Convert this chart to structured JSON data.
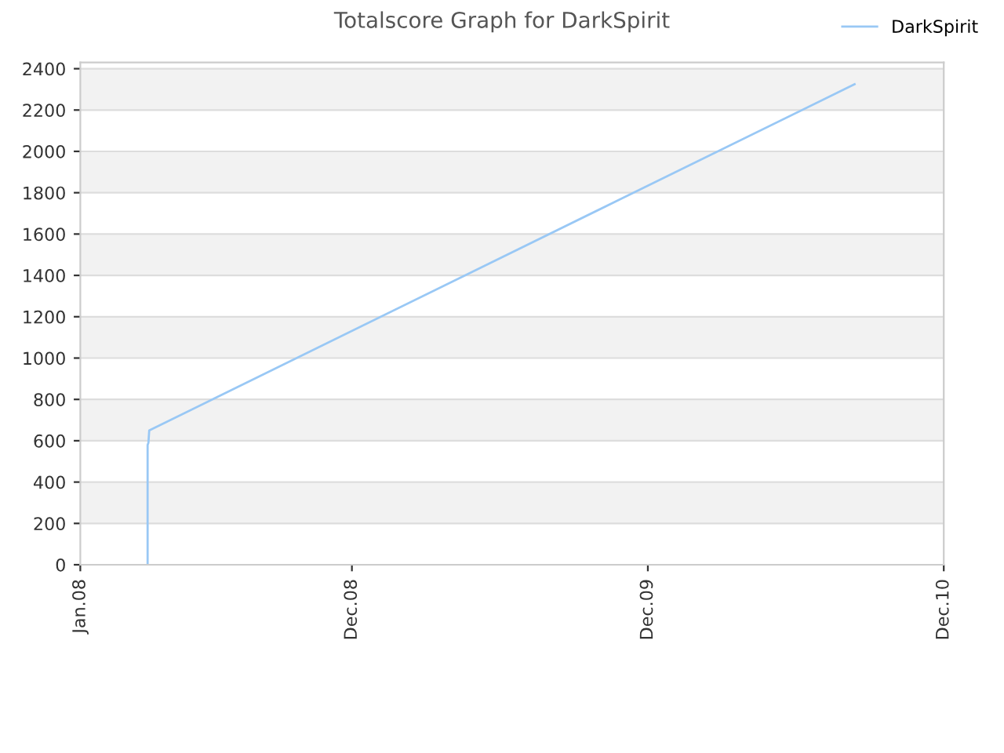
{
  "chart_data": {
    "type": "line",
    "title": "Totalscore Graph for DarkSpirit",
    "x": [
      "2008-03-24",
      "2008-03-24",
      "2008-03-25",
      "2008-03-26",
      "2010-08-13"
    ],
    "series": [
      {
        "name": "DarkSpirit",
        "color": "#99c8f5",
        "values": [
          0,
          580,
          590,
          650,
          2325
        ]
      }
    ],
    "xlim": [
      "2008-01-01",
      "2010-12-01"
    ],
    "xticks": [
      {
        "value": "2008-01-01",
        "label": "Jan.08"
      },
      {
        "value": "2008-12-01",
        "label": "Dec.08"
      },
      {
        "value": "2009-12-01",
        "label": "Dec.09"
      },
      {
        "value": "2010-12-01",
        "label": "Dec.10"
      }
    ],
    "ylim": [
      0,
      2430
    ],
    "yticks": [
      0,
      200,
      400,
      600,
      800,
      1000,
      1200,
      1400,
      1600,
      1800,
      2000,
      2200,
      2400
    ],
    "grid": "y",
    "legend": "top right",
    "marker": "none",
    "line_style": "solid"
  }
}
